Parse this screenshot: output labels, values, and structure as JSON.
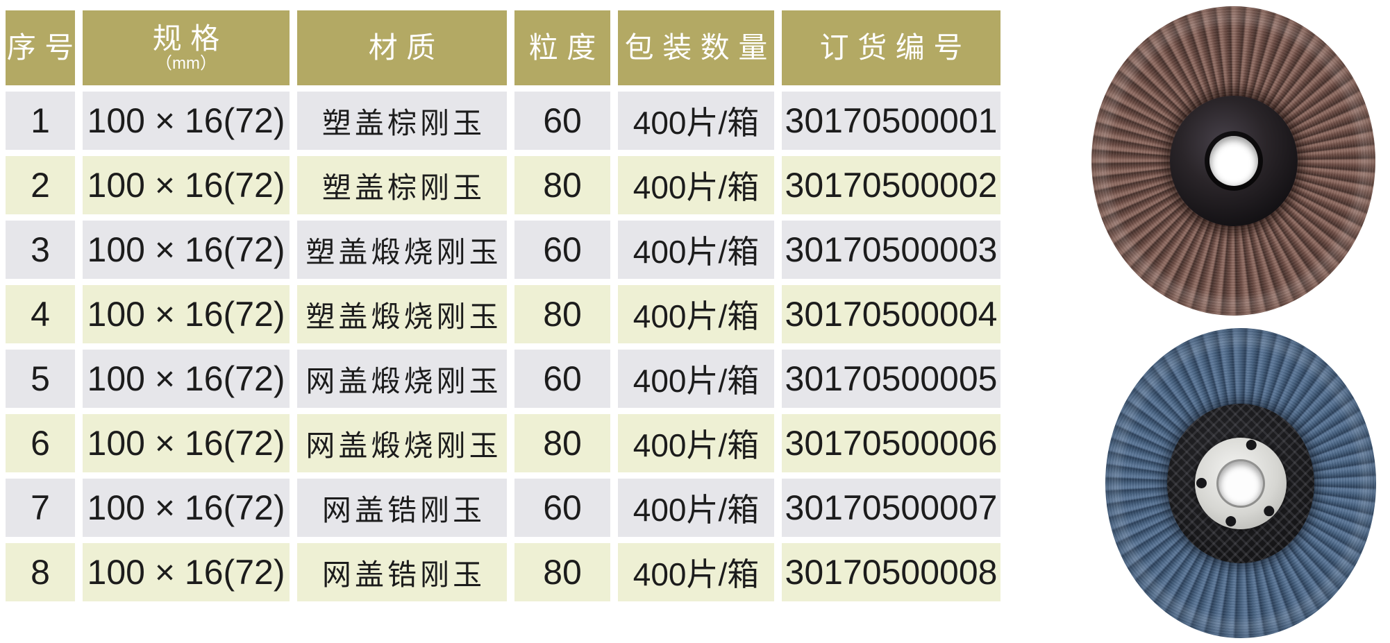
{
  "page": {
    "background": "#ffffff"
  },
  "table": {
    "header": {
      "bg": "#b3a964",
      "text_color": "#ffffff",
      "columns": [
        {
          "key": "index",
          "label": "序号",
          "sublabel": ""
        },
        {
          "key": "spec",
          "label": "规格",
          "sublabel": "（mm）"
        },
        {
          "key": "material",
          "label": "材质",
          "sublabel": ""
        },
        {
          "key": "grit",
          "label": "粒度",
          "sublabel": ""
        },
        {
          "key": "packing",
          "label": "包装数量",
          "sublabel": ""
        },
        {
          "key": "order_no",
          "label": "订货编号",
          "sublabel": ""
        }
      ]
    },
    "row_colors": {
      "odd": "#e6e6ea",
      "even": "#eef0d4"
    },
    "text_color": "#1c1c1c",
    "rows": [
      {
        "index": "1",
        "spec": "100 × 16(72)",
        "material": "塑盖棕刚玉",
        "grit": "60",
        "packing": "400片/箱",
        "order_no": "30170500001"
      },
      {
        "index": "2",
        "spec": "100 × 16(72)",
        "material": "塑盖棕刚玉",
        "grit": "80",
        "packing": "400片/箱",
        "order_no": "30170500002"
      },
      {
        "index": "3",
        "spec": "100 × 16(72)",
        "material": "塑盖煅烧刚玉",
        "grit": "60",
        "packing": "400片/箱",
        "order_no": "30170500003"
      },
      {
        "index": "4",
        "spec": "100 × 16(72)",
        "material": "塑盖煅烧刚玉",
        "grit": "80",
        "packing": "400片/箱",
        "order_no": "30170500004"
      },
      {
        "index": "5",
        "spec": "100 × 16(72)",
        "material": "网盖煅烧刚玉",
        "grit": "60",
        "packing": "400片/箱",
        "order_no": "30170500005"
      },
      {
        "index": "6",
        "spec": "100 × 16(72)",
        "material": "网盖煅烧刚玉",
        "grit": "80",
        "packing": "400片/箱",
        "order_no": "30170500006"
      },
      {
        "index": "7",
        "spec": "100 × 16(72)",
        "material": "网盖锆刚玉",
        "grit": "60",
        "packing": "400片/箱",
        "order_no": "30170500007"
      },
      {
        "index": "8",
        "spec": "100 × 16(72)",
        "material": "网盖锆刚玉",
        "grit": "80",
        "packing": "400片/箱",
        "order_no": "30170500008"
      }
    ]
  },
  "photos": {
    "top_disc": {
      "flap_color": "#6b4b43",
      "hub_color": "#1b1719",
      "style": "plastic-cover"
    },
    "bottom_disc": {
      "flap_color": "#466180",
      "hub_color": "#151517",
      "style": "mesh-cover"
    }
  }
}
